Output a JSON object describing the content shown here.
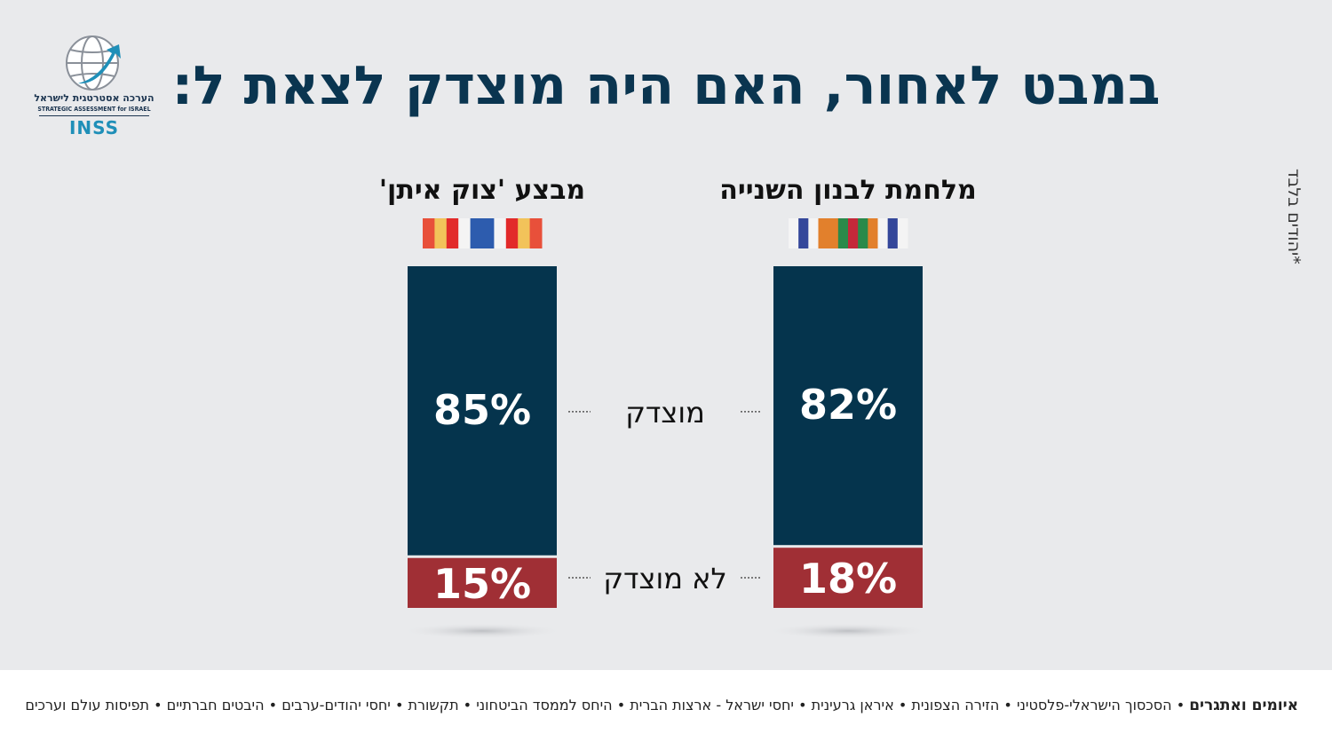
{
  "title": "במבט לאחור, האם היה מוצדק לצאת ל:",
  "logo": {
    "hebrew": "הערכה אסטרטגית לישראל",
    "english": "STRATEGIC ASSESSMENT for ISRAEL",
    "mark": "INSS"
  },
  "side_note": "*יהודים בלבד",
  "footer": {
    "lead": "איומים ואתגרים",
    "items": [
      "הסכסוך הישראלי-פלסטיני",
      "הזירה הצפונית",
      "איראן גרעינית",
      "יחסי ישראל - ארצות הברית",
      "היחס לממסד הביטחוני",
      "תקשורת",
      "יחסי יהודים-ערבים",
      "היבטים חברתיים",
      "תפיסות עולם וערכים"
    ]
  },
  "colors": {
    "justified": "#05344d",
    "not_justified": "#a02f35",
    "title": "#0a3550"
  },
  "chart_data": {
    "type": "bar",
    "stacked": true,
    "categories": [
      "מלחמת לבנון השנייה",
      "מבצע 'צוק איתן'"
    ],
    "series": [
      {
        "name": "מוצדק",
        "values": [
          82,
          85
        ]
      },
      {
        "name": "לא מוצדק",
        "values": [
          18,
          15
        ]
      }
    ],
    "value_labels": [
      [
        "82%",
        "18%"
      ],
      [
        "85%",
        "15%"
      ]
    ],
    "ylim": [
      0,
      100
    ],
    "title": "במבט לאחור, האם היה מוצדק לצאת ל:",
    "grid": false
  }
}
